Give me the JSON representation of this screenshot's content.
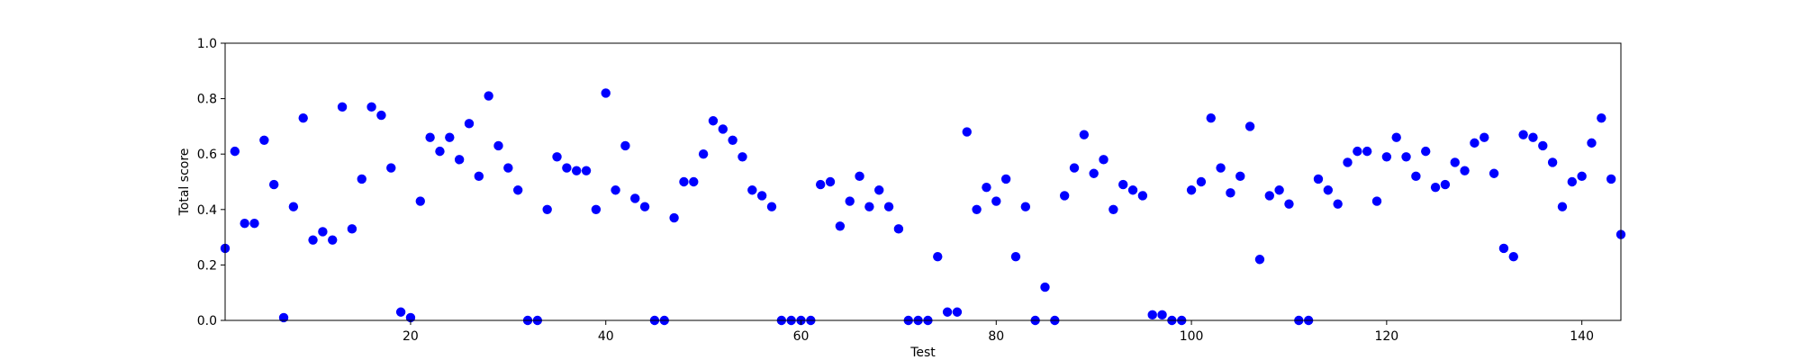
{
  "chart_data": {
    "type": "scatter",
    "title": "",
    "xlabel": "Test",
    "ylabel": "Total score",
    "xlim": [
      1,
      144
    ],
    "ylim": [
      0.0,
      1.0
    ],
    "xticks": [
      20,
      40,
      60,
      80,
      100,
      120,
      140
    ],
    "xtick_labels": [
      "20",
      "40",
      "60",
      "80",
      "100",
      "120",
      "140"
    ],
    "yticks": [
      0.0,
      0.2,
      0.4,
      0.6,
      0.8,
      1.0
    ],
    "ytick_labels": [
      "0.0",
      "0.2",
      "0.4",
      "0.6",
      "0.8",
      "1.0"
    ],
    "grid": false,
    "legend": "none",
    "marker_color": "#0000ff",
    "series": [
      {
        "x": [
          1,
          2,
          3,
          4,
          5,
          6,
          7,
          8,
          9,
          10,
          11,
          12,
          13,
          14,
          15,
          16,
          17,
          18,
          19,
          20,
          21,
          22,
          23,
          24,
          25,
          26,
          27,
          28,
          29,
          30,
          31,
          32,
          33,
          34,
          35,
          36,
          37,
          38,
          39,
          40,
          41,
          42,
          43,
          44,
          45,
          46,
          47,
          48,
          49,
          50,
          51,
          52,
          53,
          54,
          55,
          56,
          57,
          58,
          59,
          60,
          61,
          62,
          63,
          64,
          65,
          66,
          67,
          68,
          69,
          70,
          71,
          72,
          73,
          74,
          75,
          76,
          77,
          78,
          79,
          80,
          81,
          82,
          83,
          84,
          85,
          86,
          87,
          88,
          89,
          90,
          91,
          92,
          93,
          94,
          95,
          96,
          97,
          98,
          99,
          100,
          101,
          102,
          103,
          104,
          105,
          106,
          107,
          108,
          109,
          110,
          111,
          112,
          113,
          114,
          115,
          116,
          117,
          118,
          119,
          120,
          121,
          122,
          123,
          124,
          125,
          126,
          127,
          128,
          129,
          130,
          131,
          132,
          133,
          134,
          135,
          136,
          137,
          138,
          139,
          140,
          141,
          142,
          143,
          144
        ],
        "y": [
          0.26,
          0.61,
          0.35,
          0.35,
          0.65,
          0.49,
          0.01,
          0.41,
          0.73,
          0.29,
          0.32,
          0.29,
          0.77,
          0.33,
          0.51,
          0.77,
          0.74,
          0.55,
          0.03,
          0.01,
          0.43,
          0.66,
          0.61,
          0.66,
          0.58,
          0.71,
          0.52,
          0.81,
          0.63,
          0.55,
          0.47,
          0.0,
          0.0,
          0.4,
          0.59,
          0.55,
          0.54,
          0.54,
          0.4,
          0.82,
          0.47,
          0.63,
          0.44,
          0.41,
          0.0,
          0.0,
          0.37,
          0.5,
          0.5,
          0.6,
          0.72,
          0.69,
          0.65,
          0.59,
          0.47,
          0.45,
          0.41,
          0.0,
          0.0,
          0.0,
          0.0,
          0.49,
          0.5,
          0.34,
          0.43,
          0.52,
          0.41,
          0.47,
          0.41,
          0.33,
          0.0,
          0.0,
          0.0,
          0.23,
          0.03,
          0.03,
          0.68,
          0.4,
          0.48,
          0.43,
          0.51,
          0.23,
          0.41,
          0.0,
          0.12,
          0.0,
          0.45,
          0.55,
          0.67,
          0.53,
          0.58,
          0.4,
          0.49,
          0.47,
          0.45,
          0.02,
          0.02,
          0.0,
          0.0,
          0.47,
          0.5,
          0.73,
          0.55,
          0.46,
          0.52,
          0.7,
          0.22,
          0.45,
          0.47,
          0.42,
          0.0,
          0.0,
          0.51,
          0.47,
          0.42,
          0.57,
          0.61,
          0.61,
          0.43,
          0.59,
          0.66,
          0.59,
          0.52,
          0.61,
          0.48,
          0.49,
          0.57,
          0.54,
          0.64,
          0.66,
          0.53,
          0.26,
          0.23,
          0.67,
          0.66,
          0.63,
          0.57,
          0.41,
          0.5,
          0.52,
          0.64,
          0.73,
          0.51,
          0.31
        ]
      }
    ]
  }
}
